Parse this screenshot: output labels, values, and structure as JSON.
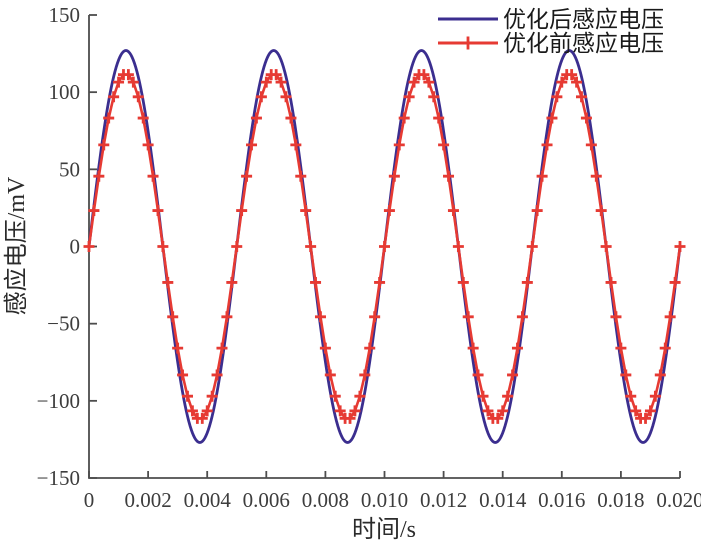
{
  "figure": {
    "background": "#ffffff"
  },
  "chart_data": {
    "type": "line",
    "title": "",
    "xlabel": "时间/s",
    "ylabel": "感应电压/mV",
    "xlim": [
      0,
      0.02
    ],
    "ylim": [
      -150,
      150
    ],
    "x_ticks": [
      0,
      0.002,
      0.004,
      0.006,
      0.008,
      0.01,
      0.012,
      0.014,
      0.016,
      0.018,
      0.02
    ],
    "x_tick_labels": [
      "0",
      "0.002",
      "0.004",
      "0.006",
      "0.008",
      "0.010",
      "0.012",
      "0.014",
      "0.016",
      "0.018",
      "0.020"
    ],
    "y_ticks": [
      -150,
      -100,
      -50,
      0,
      50,
      100,
      150
    ],
    "y_tick_labels": [
      "−150",
      "−100",
      "−50",
      "0",
      "50",
      "100",
      "150"
    ],
    "grid": false,
    "legend_position": "top-right-inside",
    "axis_color": "#4d4d4d",
    "series": [
      {
        "name": "优化后感应电压",
        "color": "#3b2e8f",
        "marker": "none",
        "line_width": 2.8,
        "waveform": "sine",
        "amplitude_mv": 127,
        "frequency_hz": 200,
        "phase_deg": 0,
        "t_start_s": 0,
        "t_end_s": 0.02,
        "n_points": 481
      },
      {
        "name": "优化前感应电压",
        "color": "#e63a33",
        "marker": "plus",
        "marker_size_px": 11,
        "line_width": 2.6,
        "waveform": "sine",
        "amplitude_mv": 112,
        "frequency_hz": 200,
        "phase_deg": 0,
        "t_start_s": 0,
        "t_end_s": 0.02,
        "n_points": 121
      }
    ]
  }
}
